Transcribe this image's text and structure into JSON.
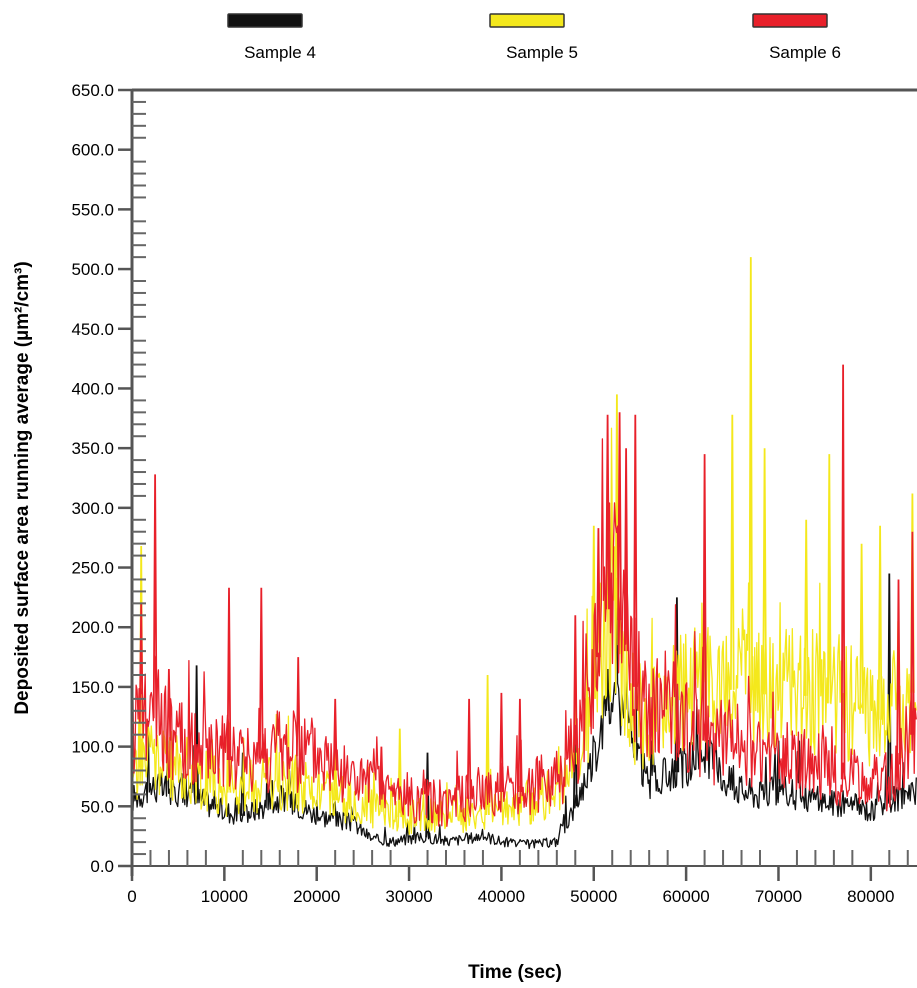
{
  "chart_data": {
    "type": "line",
    "xlabel": "Time (sec)",
    "ylabel": "Deposited surface area running average (µm²/cm³)",
    "xlim": [
      0,
      85000
    ],
    "ylim": [
      0,
      650
    ],
    "x_ticks": [
      0,
      10000,
      20000,
      30000,
      40000,
      50000,
      60000,
      70000,
      80000
    ],
    "x_tick_labels": [
      "0",
      "10000",
      "20000",
      "30000",
      "40000",
      "50000",
      "60000",
      "70000",
      "80000"
    ],
    "y_ticks": [
      0,
      50,
      100,
      150,
      200,
      250,
      300,
      350,
      400,
      450,
      500,
      550,
      600,
      650
    ],
    "y_tick_labels": [
      "0.0",
      "50.0",
      "100.0",
      "150.0",
      "200.0",
      "250.0",
      "300.0",
      "350.0",
      "400.0",
      "450.0",
      "500.0",
      "550.0",
      "600.0",
      "650.0"
    ],
    "grid": false,
    "legend_position": "top",
    "draw_order": [
      "Sample 4",
      "Sample 5",
      "Sample 6"
    ],
    "series": [
      {
        "name": "Sample 4",
        "color": "#111111",
        "x": [
          0,
          2000,
          4000,
          6000,
          8000,
          10000,
          12000,
          14000,
          16000,
          18000,
          20000,
          22000,
          24000,
          26000,
          28000,
          30000,
          32000,
          34000,
          36000,
          38000,
          40000,
          42000,
          44000,
          46000,
          48000,
          50000,
          51000,
          52000,
          53000,
          54000,
          56000,
          58000,
          60000,
          62000,
          64000,
          66000,
          68000,
          70000,
          72000,
          74000,
          76000,
          78000,
          80000,
          82000,
          84000,
          85000
        ],
        "y": [
          55,
          65,
          62,
          60,
          52,
          45,
          42,
          48,
          55,
          50,
          42,
          38,
          35,
          22,
          20,
          22,
          24,
          20,
          22,
          25,
          20,
          18,
          18,
          20,
          50,
          90,
          120,
          140,
          130,
          110,
          65,
          75,
          82,
          95,
          72,
          62,
          58,
          62,
          58,
          55,
          52,
          50,
          45,
          55,
          58,
          60
        ],
        "spikes": [
          [
            7000,
            168
          ],
          [
            12000,
            95
          ],
          [
            32000,
            95
          ],
          [
            48000,
            148
          ],
          [
            51500,
            165
          ],
          [
            59000,
            225
          ],
          [
            70000,
            105
          ],
          [
            82000,
            245
          ]
        ]
      },
      {
        "name": "Sample 5",
        "color": "#f4e81c",
        "x": [
          0,
          2000,
          4000,
          6000,
          8000,
          10000,
          12000,
          14000,
          16000,
          18000,
          20000,
          22000,
          24000,
          26000,
          28000,
          30000,
          32000,
          34000,
          36000,
          38000,
          40000,
          42000,
          44000,
          46000,
          48000,
          50000,
          51000,
          52000,
          53000,
          54000,
          56000,
          58000,
          60000,
          62000,
          64000,
          66000,
          68000,
          70000,
          72000,
          74000,
          76000,
          78000,
          80000,
          82000,
          84000,
          85000
        ],
        "y": [
          75,
          90,
          80,
          78,
          68,
          62,
          60,
          66,
          70,
          65,
          58,
          55,
          50,
          45,
          42,
          40,
          40,
          40,
          42,
          42,
          45,
          50,
          55,
          60,
          85,
          140,
          180,
          200,
          170,
          130,
          115,
          130,
          140,
          150,
          145,
          150,
          145,
          140,
          145,
          140,
          135,
          130,
          125,
          120,
          140,
          150
        ],
        "spikes": [
          [
            1000,
            268
          ],
          [
            10500,
            120
          ],
          [
            22000,
            100
          ],
          [
            29000,
            115
          ],
          [
            38500,
            160
          ],
          [
            48000,
            180
          ],
          [
            50000,
            285
          ],
          [
            52500,
            395
          ],
          [
            65000,
            378
          ],
          [
            67000,
            510
          ],
          [
            68500,
            350
          ],
          [
            73000,
            290
          ],
          [
            75500,
            345
          ],
          [
            79000,
            270
          ],
          [
            81000,
            285
          ],
          [
            84500,
            312
          ]
        ]
      },
      {
        "name": "Sample 6",
        "color": "#e8202a",
        "x": [
          0,
          2000,
          4000,
          6000,
          8000,
          10000,
          12000,
          14000,
          16000,
          18000,
          20000,
          22000,
          24000,
          26000,
          28000,
          30000,
          32000,
          34000,
          36000,
          38000,
          40000,
          42000,
          44000,
          46000,
          48000,
          50000,
          51000,
          52000,
          53000,
          54000,
          56000,
          58000,
          60000,
          62000,
          64000,
          66000,
          68000,
          70000,
          72000,
          74000,
          76000,
          78000,
          80000,
          82000,
          84000,
          85000
        ],
        "y": [
          110,
          130,
          105,
          95,
          92,
          90,
          85,
          90,
          95,
          92,
          88,
          80,
          70,
          62,
          58,
          55,
          52,
          50,
          55,
          60,
          62,
          62,
          65,
          70,
          95,
          150,
          200,
          230,
          200,
          160,
          120,
          130,
          110,
          105,
          100,
          95,
          90,
          85,
          85,
          80,
          75,
          70,
          65,
          70,
          100,
          120
        ],
        "spikes": [
          [
            1000,
            220
          ],
          [
            2500,
            328
          ],
          [
            4000,
            165
          ],
          [
            10500,
            233
          ],
          [
            14000,
            233
          ],
          [
            18000,
            175
          ],
          [
            22000,
            140
          ],
          [
            27000,
            100
          ],
          [
            36500,
            140
          ],
          [
            40000,
            145
          ],
          [
            42000,
            140
          ],
          [
            48000,
            210
          ],
          [
            50500,
            283
          ],
          [
            51500,
            378
          ],
          [
            52800,
            380
          ],
          [
            53500,
            350
          ],
          [
            54500,
            378
          ],
          [
            62000,
            345
          ],
          [
            77000,
            420
          ],
          [
            83000,
            240
          ],
          [
            84500,
            280
          ]
        ]
      }
    ]
  }
}
